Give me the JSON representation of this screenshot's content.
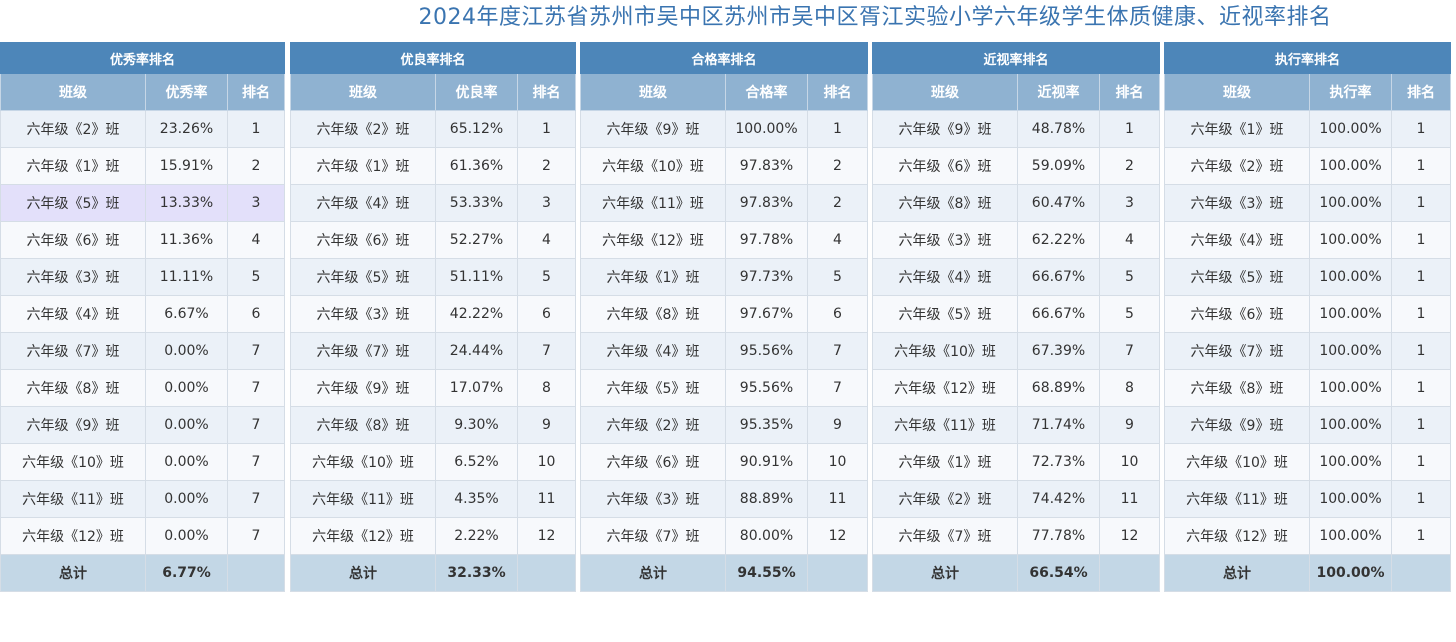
{
  "title": "2024年度江苏省苏州市吴中区苏州市吴中区胥江实验小学六年级学生体质健康、近视率排名",
  "panels": [
    {
      "caption": "优秀率排名",
      "headers": [
        "班级",
        "优秀率",
        "排名"
      ],
      "rows": [
        [
          "六年级《2》班",
          "23.26%",
          "1"
        ],
        [
          "六年级《1》班",
          "15.91%",
          "2"
        ],
        [
          "六年级《5》班",
          "13.33%",
          "3"
        ],
        [
          "六年级《6》班",
          "11.36%",
          "4"
        ],
        [
          "六年级《3》班",
          "11.11%",
          "5"
        ],
        [
          "六年级《4》班",
          "6.67%",
          "6"
        ],
        [
          "六年级《7》班",
          "0.00%",
          "7"
        ],
        [
          "六年级《8》班",
          "0.00%",
          "7"
        ],
        [
          "六年级《9》班",
          "0.00%",
          "7"
        ],
        [
          "六年级《10》班",
          "0.00%",
          "7"
        ],
        [
          "六年级《11》班",
          "0.00%",
          "7"
        ],
        [
          "六年级《12》班",
          "0.00%",
          "7"
        ]
      ],
      "total": [
        "总计",
        "6.77%",
        ""
      ]
    },
    {
      "caption": "优良率排名",
      "headers": [
        "班级",
        "优良率",
        "排名"
      ],
      "rows": [
        [
          "六年级《2》班",
          "65.12%",
          "1"
        ],
        [
          "六年级《1》班",
          "61.36%",
          "2"
        ],
        [
          "六年级《4》班",
          "53.33%",
          "3"
        ],
        [
          "六年级《6》班",
          "52.27%",
          "4"
        ],
        [
          "六年级《5》班",
          "51.11%",
          "5"
        ],
        [
          "六年级《3》班",
          "42.22%",
          "6"
        ],
        [
          "六年级《7》班",
          "24.44%",
          "7"
        ],
        [
          "六年级《9》班",
          "17.07%",
          "8"
        ],
        [
          "六年级《8》班",
          "9.30%",
          "9"
        ],
        [
          "六年级《10》班",
          "6.52%",
          "10"
        ],
        [
          "六年级《11》班",
          "4.35%",
          "11"
        ],
        [
          "六年级《12》班",
          "2.22%",
          "12"
        ]
      ],
      "total": [
        "总计",
        "32.33%",
        ""
      ]
    },
    {
      "caption": "合格率排名",
      "headers": [
        "班级",
        "合格率",
        "排名"
      ],
      "rows": [
        [
          "六年级《9》班",
          "100.00%",
          "1"
        ],
        [
          "六年级《10》班",
          "97.83%",
          "2"
        ],
        [
          "六年级《11》班",
          "97.83%",
          "2"
        ],
        [
          "六年级《12》班",
          "97.78%",
          "4"
        ],
        [
          "六年级《1》班",
          "97.73%",
          "5"
        ],
        [
          "六年级《8》班",
          "97.67%",
          "6"
        ],
        [
          "六年级《4》班",
          "95.56%",
          "7"
        ],
        [
          "六年级《5》班",
          "95.56%",
          "7"
        ],
        [
          "六年级《2》班",
          "95.35%",
          "9"
        ],
        [
          "六年级《6》班",
          "90.91%",
          "10"
        ],
        [
          "六年级《3》班",
          "88.89%",
          "11"
        ],
        [
          "六年级《7》班",
          "80.00%",
          "12"
        ]
      ],
      "total": [
        "总计",
        "94.55%",
        ""
      ]
    },
    {
      "caption": "近视率排名",
      "headers": [
        "班级",
        "近视率",
        "排名"
      ],
      "rows": [
        [
          "六年级《9》班",
          "48.78%",
          "1"
        ],
        [
          "六年级《6》班",
          "59.09%",
          "2"
        ],
        [
          "六年级《8》班",
          "60.47%",
          "3"
        ],
        [
          "六年级《3》班",
          "62.22%",
          "4"
        ],
        [
          "六年级《4》班",
          "66.67%",
          "5"
        ],
        [
          "六年级《5》班",
          "66.67%",
          "5"
        ],
        [
          "六年级《10》班",
          "67.39%",
          "7"
        ],
        [
          "六年级《12》班",
          "68.89%",
          "8"
        ],
        [
          "六年级《11》班",
          "71.74%",
          "9"
        ],
        [
          "六年级《1》班",
          "72.73%",
          "10"
        ],
        [
          "六年级《2》班",
          "74.42%",
          "11"
        ],
        [
          "六年级《7》班",
          "77.78%",
          "12"
        ]
      ],
      "total": [
        "总计",
        "66.54%",
        ""
      ]
    },
    {
      "caption": "执行率排名",
      "headers": [
        "班级",
        "执行率",
        "排名"
      ],
      "rows": [
        [
          "六年级《1》班",
          "100.00%",
          "1"
        ],
        [
          "六年级《2》班",
          "100.00%",
          "1"
        ],
        [
          "六年级《3》班",
          "100.00%",
          "1"
        ],
        [
          "六年级《4》班",
          "100.00%",
          "1"
        ],
        [
          "六年级《5》班",
          "100.00%",
          "1"
        ],
        [
          "六年级《6》班",
          "100.00%",
          "1"
        ],
        [
          "六年级《7》班",
          "100.00%",
          "1"
        ],
        [
          "六年级《8》班",
          "100.00%",
          "1"
        ],
        [
          "六年级《9》班",
          "100.00%",
          "1"
        ],
        [
          "六年级《10》班",
          "100.00%",
          "1"
        ],
        [
          "六年级《11》班",
          "100.00%",
          "1"
        ],
        [
          "六年级《12》班",
          "100.00%",
          "1"
        ]
      ],
      "total": [
        "总计",
        "100.00%",
        ""
      ]
    }
  ],
  "highlighted_row": {
    "panel": 0,
    "row": 2
  }
}
